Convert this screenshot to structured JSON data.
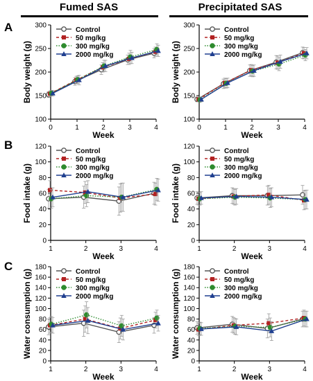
{
  "columns": [
    "Fumed SAS",
    "Precipitated SAS"
  ],
  "panel_letters": [
    "A",
    "B",
    "C"
  ],
  "legend": [
    {
      "name": "Control",
      "color": "#555555",
      "marker": "circle-open",
      "dash": "solid"
    },
    {
      "name": "50 mg/kg",
      "color": "#b22222",
      "marker": "square",
      "dash": "dashed"
    },
    {
      "name": "300 mg/kg",
      "color": "#2e8b2e",
      "marker": "circle",
      "dash": "dotted"
    },
    {
      "name": "2000 mg/kg",
      "color": "#1f3f8f",
      "marker": "triangle",
      "dash": "solid"
    }
  ],
  "chart_data": [
    {
      "type": "line",
      "column": "Fumed SAS",
      "panel": "A",
      "xlabel": "Week",
      "ylabel": "Body weight (g)",
      "x": [
        0,
        1,
        2,
        3,
        4
      ],
      "xticks": [
        "0",
        "1",
        "2",
        "3",
        "4"
      ],
      "xlim": [
        0,
        4
      ],
      "ylim": [
        100,
        300
      ],
      "yticks": [
        100,
        150,
        200,
        250,
        300
      ],
      "series": [
        {
          "name": "Control",
          "values": [
            152,
            180,
            205,
            226,
            240
          ],
          "err": [
            6,
            8,
            10,
            10,
            10
          ]
        },
        {
          "name": "50 mg/kg",
          "values": [
            154,
            183,
            210,
            228,
            243
          ],
          "err": [
            6,
            8,
            10,
            12,
            10
          ]
        },
        {
          "name": "300 mg/kg",
          "values": [
            155,
            184,
            213,
            232,
            248
          ],
          "err": [
            6,
            8,
            12,
            14,
            12
          ]
        },
        {
          "name": "2000 mg/kg",
          "values": [
            155,
            183,
            213,
            230,
            245
          ],
          "err": [
            6,
            10,
            12,
            12,
            12
          ]
        }
      ]
    },
    {
      "type": "line",
      "column": "Precipitated SAS",
      "panel": "A",
      "xlabel": "Week",
      "ylabel": "Body weight (g)",
      "x": [
        0,
        1,
        2,
        3,
        4
      ],
      "xticks": [
        "0",
        "1",
        "2",
        "3",
        "4"
      ],
      "xlim": [
        0,
        4
      ],
      "ylim": [
        100,
        300
      ],
      "yticks": [
        100,
        150,
        200,
        250,
        300
      ],
      "series": [
        {
          "name": "Control",
          "values": [
            142,
            175,
            203,
            221,
            241
          ],
          "err": [
            5,
            10,
            12,
            14,
            12
          ]
        },
        {
          "name": "50 mg/kg",
          "values": [
            142,
            177,
            204,
            220,
            240
          ],
          "err": [
            5,
            10,
            12,
            14,
            12
          ]
        },
        {
          "name": "300 mg/kg",
          "values": [
            141,
            176,
            202,
            217,
            236
          ],
          "err": [
            5,
            10,
            12,
            14,
            12
          ]
        },
        {
          "name": "2000 mg/kg",
          "values": [
            142,
            177,
            203,
            222,
            240
          ],
          "err": [
            5,
            10,
            12,
            14,
            12
          ]
        }
      ]
    },
    {
      "type": "line",
      "column": "Fumed SAS",
      "panel": "B",
      "xlabel": "Week",
      "ylabel": "Food intake (g)",
      "x": [
        1,
        2,
        3,
        4
      ],
      "xticks": [
        "1",
        "2",
        "3",
        "4"
      ],
      "xlim": [
        1,
        4
      ],
      "ylim": [
        0,
        120
      ],
      "yticks": [
        0,
        20,
        40,
        60,
        80,
        100,
        120
      ],
      "series": [
        {
          "name": "Control",
          "values": [
            53,
            55,
            50,
            60
          ],
          "err": [
            12,
            14,
            18,
            14
          ]
        },
        {
          "name": "50 mg/kg",
          "values": [
            64,
            61,
            54,
            59
          ],
          "err": [
            12,
            14,
            18,
            14
          ]
        },
        {
          "name": "300 mg/kg",
          "values": [
            53,
            57,
            55,
            65
          ],
          "err": [
            12,
            14,
            18,
            14
          ]
        },
        {
          "name": "2000 mg/kg",
          "values": [
            55,
            62,
            55,
            64
          ],
          "err": [
            12,
            14,
            18,
            14
          ]
        }
      ]
    },
    {
      "type": "line",
      "column": "Precipitated SAS",
      "panel": "B",
      "xlabel": "Week",
      "ylabel": "Food intake (g)",
      "x": [
        1,
        2,
        3,
        4
      ],
      "xticks": [
        "1",
        "2",
        "3",
        "4"
      ],
      "xlim": [
        1,
        4
      ],
      "ylim": [
        0,
        120
      ],
      "yticks": [
        0,
        20,
        40,
        60,
        80,
        100,
        120
      ],
      "series": [
        {
          "name": "Control",
          "values": [
            54,
            57,
            57,
            58
          ],
          "err": [
            8,
            10,
            12,
            12
          ]
        },
        {
          "name": "50 mg/kg",
          "values": [
            53,
            56,
            58,
            51
          ],
          "err": [
            8,
            10,
            12,
            12
          ]
        },
        {
          "name": "300 mg/kg",
          "values": [
            53,
            55,
            54,
            52
          ],
          "err": [
            8,
            10,
            12,
            12
          ]
        },
        {
          "name": "2000 mg/kg",
          "values": [
            54,
            56,
            55,
            52
          ],
          "err": [
            8,
            10,
            12,
            12
          ]
        }
      ]
    },
    {
      "type": "line",
      "column": "Fumed SAS",
      "panel": "C",
      "xlabel": "Week",
      "ylabel": "Water consumption (g)",
      "x": [
        1,
        2,
        3,
        4
      ],
      "xticks": [
        "1",
        "2",
        "3",
        "4"
      ],
      "xlim": [
        1,
        4
      ],
      "ylim": [
        0,
        180
      ],
      "yticks": [
        0,
        20,
        40,
        60,
        80,
        100,
        120,
        140,
        160,
        180
      ],
      "series": [
        {
          "name": "Control",
          "values": [
            65,
            72,
            55,
            68
          ],
          "err": [
            15,
            25,
            20,
            15
          ]
        },
        {
          "name": "50 mg/kg",
          "values": [
            68,
            80,
            62,
            78
          ],
          "err": [
            15,
            25,
            20,
            15
          ]
        },
        {
          "name": "300 mg/kg",
          "values": [
            70,
            88,
            67,
            82
          ],
          "err": [
            15,
            25,
            20,
            15
          ]
        },
        {
          "name": "2000 mg/kg",
          "values": [
            68,
            77,
            60,
            72
          ],
          "err": [
            15,
            25,
            20,
            15
          ]
        }
      ]
    },
    {
      "type": "line",
      "column": "Precipitated SAS",
      "panel": "C",
      "xlabel": "Week",
      "ylabel": "Water consumption (g)",
      "x": [
        1,
        2,
        3,
        4
      ],
      "xticks": [
        "1",
        "2",
        "3",
        "4"
      ],
      "xlim": [
        1,
        4
      ],
      "ylim": [
        0,
        180
      ],
      "yticks": [
        0,
        20,
        40,
        60,
        80,
        100,
        120,
        140,
        160,
        180
      ],
      "series": [
        {
          "name": "Control",
          "values": [
            63,
            70,
            62,
            80
          ],
          "err": [
            12,
            15,
            18,
            15
          ]
        },
        {
          "name": "50 mg/kg",
          "values": [
            60,
            68,
            72,
            82
          ],
          "err": [
            12,
            15,
            18,
            15
          ]
        },
        {
          "name": "300 mg/kg",
          "values": [
            62,
            66,
            64,
            80
          ],
          "err": [
            12,
            15,
            18,
            15
          ]
        },
        {
          "name": "2000 mg/kg",
          "values": [
            61,
            65,
            57,
            80
          ],
          "err": [
            12,
            15,
            18,
            15
          ]
        }
      ]
    }
  ]
}
